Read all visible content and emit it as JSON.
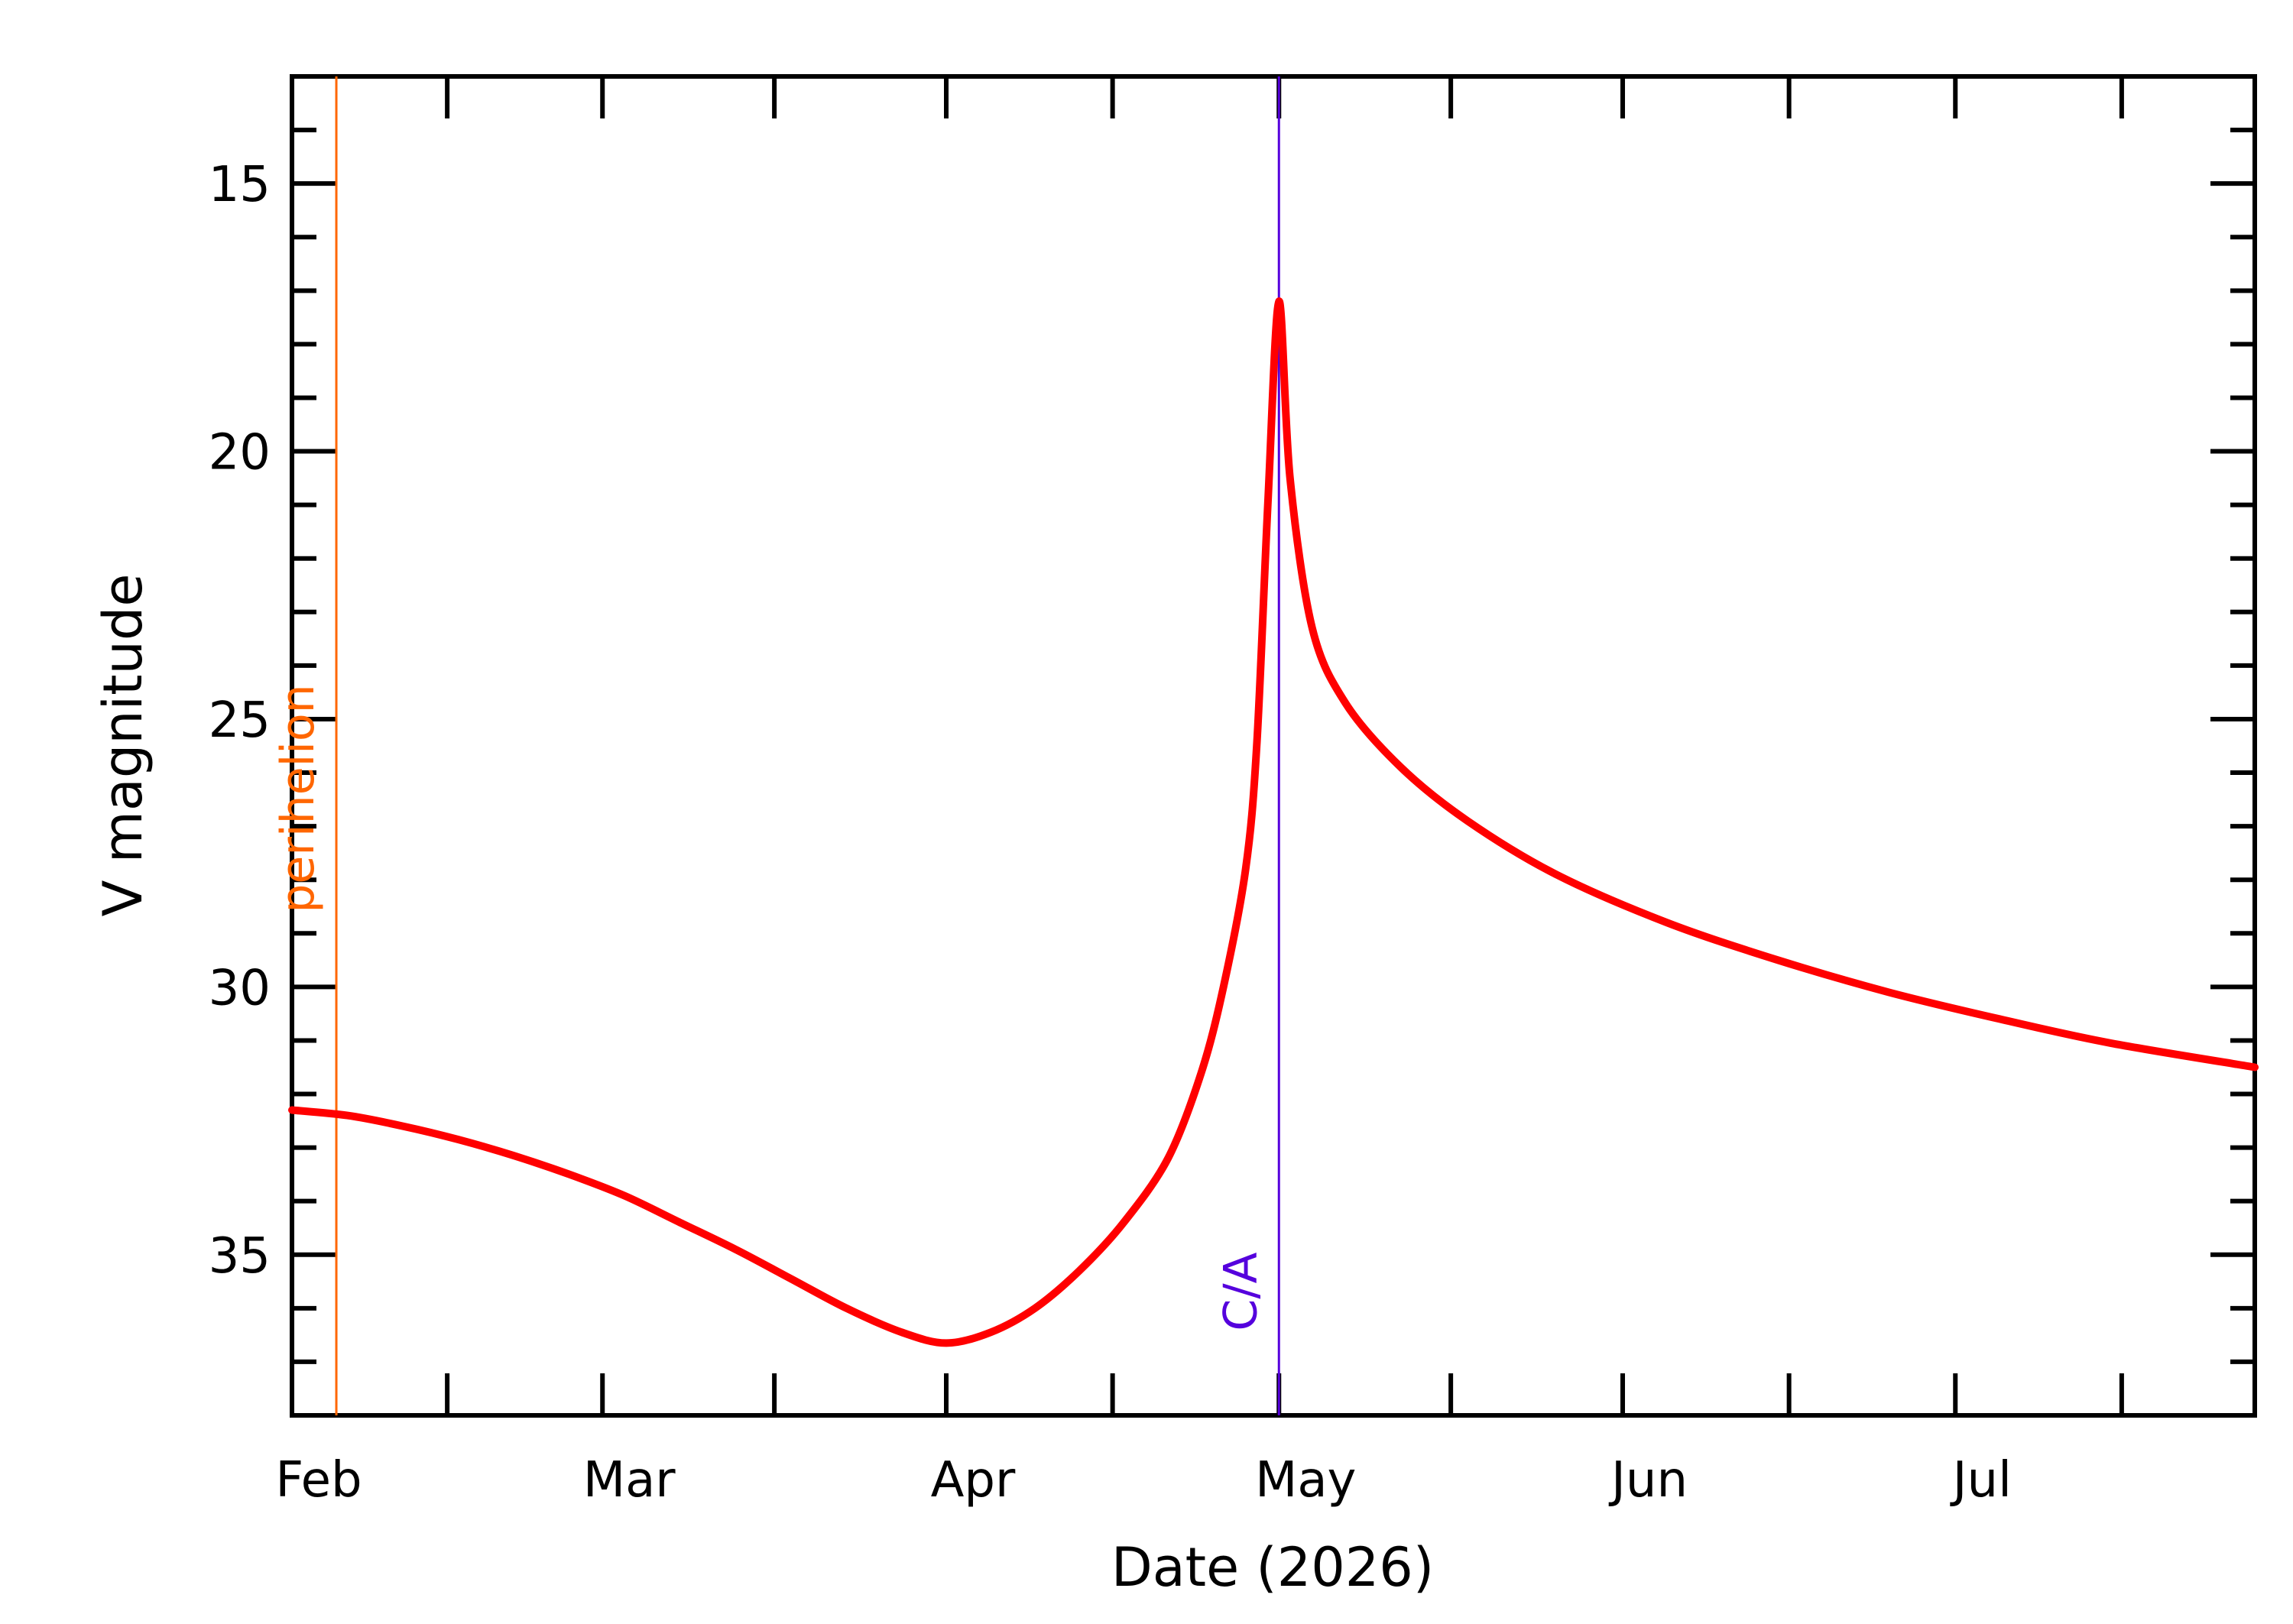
{
  "chart_data": {
    "type": "line",
    "xlabel": "Date (2026)",
    "ylabel": "V magnitude",
    "x_axis": {
      "range": [
        "2026-02-01",
        "2026-07-28"
      ],
      "month_ticks": [
        {
          "label": "Feb",
          "date": "2026-02-01"
        },
        {
          "label": "Mar",
          "date": "2026-03-01"
        },
        {
          "label": "Apr",
          "date": "2026-04-01"
        },
        {
          "label": "May",
          "date": "2026-05-01"
        },
        {
          "label": "Jun",
          "date": "2026-06-01"
        },
        {
          "label": "Jul",
          "date": "2026-07-01"
        }
      ]
    },
    "y_axis": {
      "range": [
        13,
        38
      ],
      "inverted": true,
      "major_ticks": [
        15,
        20,
        25,
        30,
        35
      ],
      "minor_step": 1
    },
    "series": [
      {
        "color": "#ff0000",
        "points": [
          {
            "x": "2026-02-01",
            "y": 32.3
          },
          {
            "x": "2026-02-06",
            "y": 32.4
          },
          {
            "x": "2026-02-11",
            "y": 32.6
          },
          {
            "x": "2026-02-16",
            "y": 32.85
          },
          {
            "x": "2026-02-21",
            "y": 33.15
          },
          {
            "x": "2026-02-26",
            "y": 33.5
          },
          {
            "x": "2026-03-03",
            "y": 33.9
          },
          {
            "x": "2026-03-08",
            "y": 34.4
          },
          {
            "x": "2026-03-13",
            "y": 34.9
          },
          {
            "x": "2026-03-18",
            "y": 35.45
          },
          {
            "x": "2026-03-23",
            "y": 36.0
          },
          {
            "x": "2026-03-28",
            "y": 36.45
          },
          {
            "x": "2026-04-01",
            "y": 36.65
          },
          {
            "x": "2026-04-05",
            "y": 36.45
          },
          {
            "x": "2026-04-09",
            "y": 36.0
          },
          {
            "x": "2026-04-13",
            "y": 35.3
          },
          {
            "x": "2026-04-17",
            "y": 34.4
          },
          {
            "x": "2026-04-21",
            "y": 33.2
          },
          {
            "x": "2026-04-24",
            "y": 31.6
          },
          {
            "x": "2026-04-26",
            "y": 30.0
          },
          {
            "x": "2026-04-28",
            "y": 27.8
          },
          {
            "x": "2026-04-29",
            "y": 25.5
          },
          {
            "x": "2026-04-30",
            "y": 21.0
          },
          {
            "x": "2026-05-01",
            "y": 17.2
          },
          {
            "x": "2026-05-02",
            "y": 20.5
          },
          {
            "x": "2026-05-04",
            "y": 23.3
          },
          {
            "x": "2026-05-07",
            "y": 24.7
          },
          {
            "x": "2026-05-12",
            "y": 25.9
          },
          {
            "x": "2026-05-18",
            "y": 26.9
          },
          {
            "x": "2026-05-26",
            "y": 27.9
          },
          {
            "x": "2026-06-05",
            "y": 28.8
          },
          {
            "x": "2026-06-15",
            "y": 29.5
          },
          {
            "x": "2026-06-25",
            "y": 30.1
          },
          {
            "x": "2026-07-05",
            "y": 30.6
          },
          {
            "x": "2026-07-15",
            "y": 31.05
          },
          {
            "x": "2026-07-28",
            "y": 31.5
          }
        ]
      }
    ],
    "markers": [
      {
        "label": "perihelion",
        "date": "2026-02-05",
        "color": "#ff6600"
      },
      {
        "label": "C/A",
        "date": "2026-05-01",
        "color": "#5500dd"
      }
    ]
  }
}
